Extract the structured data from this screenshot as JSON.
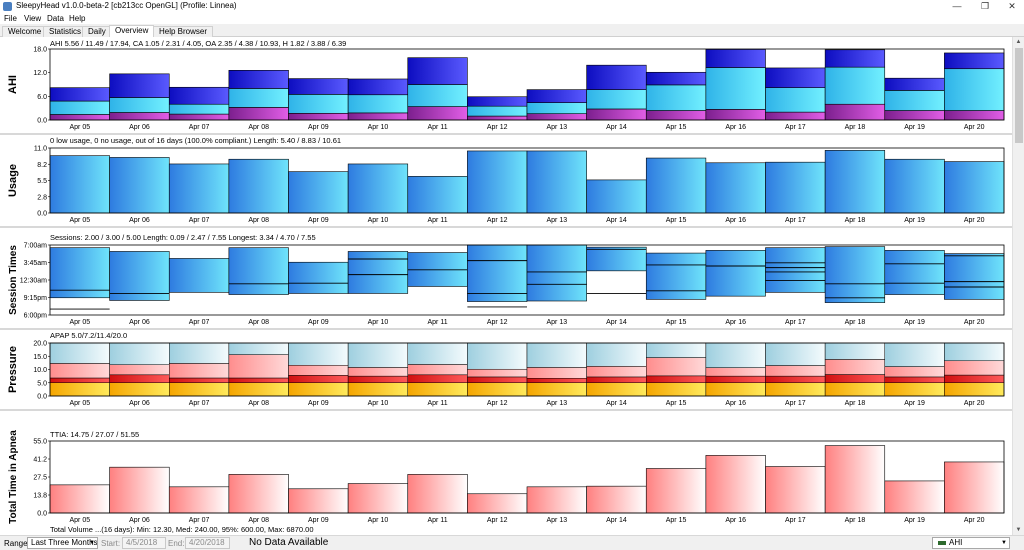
{
  "window": {
    "title": "SleepyHead v1.0.0-beta-2 [cb213cc OpenGL] (Profile: Linnea)",
    "minimize": "—",
    "maximize": "❐",
    "close": "✕"
  },
  "menu": [
    "File",
    "View",
    "Data",
    "Help"
  ],
  "tabs": [
    {
      "label": "Welcome",
      "active": false
    },
    {
      "label": "Statistics",
      "active": false
    },
    {
      "label": "Daily",
      "active": false
    },
    {
      "label": "Overview",
      "active": true
    },
    {
      "label": "Help Browser",
      "active": false
    }
  ],
  "dates": [
    "Apr 05",
    "Apr 06",
    "Apr 07",
    "Apr 08",
    "Apr 09",
    "Apr 10",
    "Apr 11",
    "Apr 12",
    "Apr 13",
    "Apr 14",
    "Apr 15",
    "Apr 16",
    "Apr 17",
    "Apr 18",
    "Apr 19",
    "Apr 20"
  ],
  "chart_data": [
    {
      "id": "ahi",
      "type": "bar",
      "ylabel": "AHI",
      "summary": "AHI 5.56 / 11.49 / 17.94, CA 1.05 / 2.31 / 4.05, OA 2.35 / 4.38 / 10.93, H 1.82 / 3.88 / 6.39",
      "yticks": [
        "18.0",
        "12.0",
        "6.0",
        "0.0"
      ],
      "ylim": [
        0,
        18
      ],
      "stacked": true,
      "series": [
        {
          "values": [
            1.4,
            1.9,
            1.5,
            3.2,
            1.7,
            1.8,
            3.4,
            1.0,
            1.6,
            2.8,
            2.4,
            2.7,
            2.0,
            4.0,
            2.4,
            2.4
          ],
          "color": "#b02aa6"
        },
        {
          "values": [
            3.4,
            3.8,
            2.5,
            4.8,
            4.8,
            4.6,
            5.6,
            2.5,
            2.8,
            4.9,
            6.5,
            10.6,
            6.2,
            9.4,
            5.1,
            10.6
          ],
          "color": "#3fd0f2"
        },
        {
          "values": [
            3.4,
            6.0,
            4.3,
            4.6,
            4.0,
            4.0,
            6.8,
            2.4,
            3.3,
            6.2,
            3.2,
            4.6,
            5.0,
            4.4,
            3.1,
            4.0
          ],
          "color": "#1a1ae8"
        }
      ]
    },
    {
      "id": "usage",
      "type": "bar",
      "ylabel": "Usage",
      "summary": "0 low usage, 0 no usage, out of 16 days (100.0% compliant.) Length: 5.40 / 8.83 / 10.61",
      "yticks": [
        "11.0",
        "8.2",
        "5.5",
        "2.8",
        "0.0"
      ],
      "ylim": [
        0,
        11
      ],
      "values": [
        9.7,
        9.4,
        8.3,
        9.1,
        7.0,
        8.3,
        6.2,
        10.5,
        10.5,
        5.6,
        9.3,
        8.5,
        8.6,
        10.6,
        9.1,
        8.7
      ],
      "color": "#3a9be8"
    },
    {
      "id": "session-times",
      "type": "bar",
      "ylabel": "Session Times",
      "summary": "Sessions: 2.00 / 3.00 / 5.00 Length: 0.09 / 2.47 / 7.55 Longest: 3.34 / 4.70 / 7.55",
      "yticks": [
        "7:00am",
        "3:45am",
        "12:30am",
        "9:15pm",
        "6:00pm"
      ],
      "ylim": [
        18,
        31
      ],
      "sessions": [
        {
          "start": 21.2,
          "end": 30.5,
          "splits": [
            22.6
          ]
        },
        {
          "start": 20.7,
          "end": 29.8,
          "splits": [
            22.0
          ]
        },
        {
          "start": 22.2,
          "end": 28.5,
          "splits": []
        },
        {
          "start": 21.8,
          "end": 30.5,
          "splits": [
            23.8
          ]
        },
        {
          "start": 22.0,
          "end": 27.8,
          "splits": [
            23.9
          ]
        },
        {
          "start": 22.0,
          "end": 29.8,
          "splits": [
            25.5,
            28.4
          ]
        },
        {
          "start": 23.3,
          "end": 29.6,
          "splits": [
            26.4
          ]
        },
        {
          "start": 20.5,
          "end": 31.0,
          "splits": [
            22.0,
            28.1
          ]
        },
        {
          "start": 20.6,
          "end": 31.0,
          "splits": [
            23.7,
            26.0
          ]
        },
        {
          "start": 26.2,
          "end": 30.6,
          "splits": [
            30.2
          ]
        },
        {
          "start": 20.9,
          "end": 29.5,
          "splits": [
            22.5,
            27.3
          ]
        },
        {
          "start": 21.5,
          "end": 30.0,
          "splits": [
            27.1
          ]
        },
        {
          "start": 22.2,
          "end": 30.5,
          "splits": [
            24.4,
            26.0,
            26.8,
            27.7
          ]
        },
        {
          "start": 20.3,
          "end": 30.7,
          "splits": [
            21.2,
            23.8
          ]
        },
        {
          "start": 21.8,
          "end": 30.0,
          "splits": [
            23.9,
            27.5
          ]
        },
        {
          "start": 20.9,
          "end": 29.4,
          "splits": [
            23.2,
            24.2,
            29.0
          ]
        }
      ],
      "extra_sessions": [
        {
          "day": 0,
          "time": 19.1
        },
        {
          "day": 7,
          "time": 19.5
        },
        {
          "day": 9,
          "time": 22.0
        }
      ],
      "color": "#3a9be8"
    },
    {
      "id": "pressure",
      "type": "bar",
      "ylabel": "Pressure",
      "summary": "APAP 5.0/7.2/11.4/20.0",
      "yticks": [
        "20.0",
        "15.0",
        "10.0",
        "5.0",
        "0.0"
      ],
      "ylim": [
        0,
        20
      ],
      "min": 5.0,
      "max": 20.0,
      "median": [
        6.8,
        8.0,
        6.8,
        6.8,
        7.8,
        7.5,
        8.0,
        7.2,
        6.7,
        7.2,
        7.6,
        7.5,
        7.5,
        8.1,
        7.2,
        7.9
      ],
      "p95": [
        12.3,
        11.8,
        12.3,
        15.6,
        11.6,
        10.8,
        11.9,
        10.1,
        10.8,
        11.2,
        14.5,
        10.7,
        11.5,
        13.8,
        11.1,
        13.3
      ],
      "colors": {
        "base": "#ffd23a",
        "median": "#e81a1a",
        "p95": "#ffb3b3",
        "max": "#b8dde8"
      }
    },
    {
      "id": "time-in-apnea",
      "type": "bar",
      "ylabel": "Total Time in Apnea",
      "summary": "TTIA: 14.75 / 27.07 / 51.55",
      "yticks": [
        "55.0",
        "41.2",
        "27.5",
        "13.8",
        "0.0"
      ],
      "ylim": [
        0,
        55
      ],
      "values": [
        21.5,
        35.0,
        20.0,
        29.5,
        18.5,
        22.5,
        29.5,
        14.7,
        20.0,
        20.5,
        34.0,
        44.0,
        35.5,
        51.5,
        24.5,
        39.0
      ],
      "color": "#ff9a9a"
    }
  ],
  "partial_summary": "Total Volume ...(16 days): Min: 12.30, Med: 240.00, 95%: 600.00, Max: 6870.00",
  "status": {
    "range_label": "Range:",
    "range_value": "Last Three Months",
    "start_label": "Start:",
    "start_value": "4/5/2018",
    "end_label": "End:",
    "end_value": "4/20/2018",
    "no_data": "No Data Available",
    "graph_select": "AHI"
  }
}
